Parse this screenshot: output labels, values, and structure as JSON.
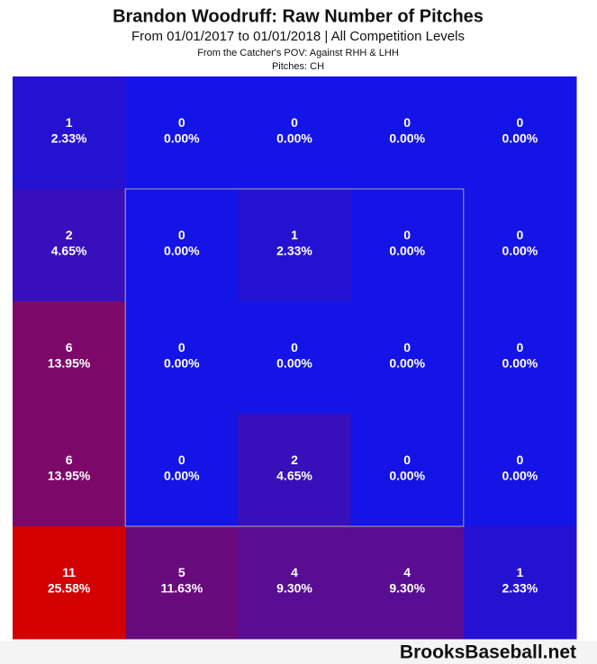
{
  "chart_data": {
    "type": "heatmap",
    "title": "Brandon Woodruff: Raw Number of Pitches",
    "subtitle": "From 01/01/2017 to 01/01/2018 | All Competition Levels",
    "note_1": "From the Catcher's POV:  Against RHH & LHH",
    "note_2": "Pitches:  CH",
    "footer": "BrooksBaseball.net",
    "color_low": "#1414e6",
    "color_high": "#d20000",
    "values": [
      [
        1,
        0,
        0,
        0,
        0
      ],
      [
        2,
        0,
        1,
        0,
        0
      ],
      [
        6,
        0,
        0,
        0,
        0
      ],
      [
        6,
        0,
        2,
        0,
        0
      ],
      [
        11,
        5,
        4,
        4,
        1
      ]
    ],
    "shares": [
      [
        2.33,
        0,
        0,
        0,
        0
      ],
      [
        4.65,
        0,
        2.33,
        0,
        0
      ],
      [
        13.95,
        0,
        0,
        0,
        0
      ],
      [
        13.95,
        0,
        4.65,
        0,
        0
      ],
      [
        25.58,
        11.63,
        9.3,
        9.3,
        2.33
      ]
    ],
    "share_labels": [
      [
        "2.33%",
        "0.00%",
        "0.00%",
        "0.00%",
        "0.00%"
      ],
      [
        "4.65%",
        "0.00%",
        "2.33%",
        "0.00%",
        "0.00%"
      ],
      [
        "13.95%",
        "0.00%",
        "0.00%",
        "0.00%",
        "0.00%"
      ],
      [
        "13.95%",
        "0.00%",
        "4.65%",
        "0.00%",
        "0.00%"
      ],
      [
        "25.58%",
        "11.63%",
        "9.30%",
        "9.30%",
        "2.33%"
      ]
    ]
  }
}
